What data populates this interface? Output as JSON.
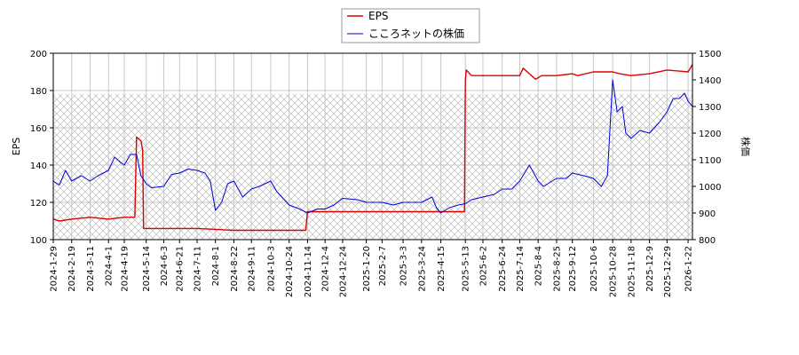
{
  "chart_data": {
    "type": "line",
    "legend": {
      "placement": "top-center",
      "entries": [
        "EPS",
        "こころネットの株価"
      ]
    },
    "grid": true,
    "shaded_band": {
      "axis": "left",
      "from": 100,
      "to": 178,
      "pattern": "crosshatch"
    },
    "x_axis": {
      "range": [
        "2024-01-29",
        "2026-01-27"
      ],
      "tick_labels": [
        "2024-1-29",
        "2024-2-19",
        "2024-3-11",
        "2024-4-1",
        "2024-4-19",
        "2024-5-14",
        "2024-6-3",
        "2024-6-21",
        "2024-7-11",
        "2024-8-1",
        "2024-8-22",
        "2024-9-11",
        "2024-10-3",
        "2024-10-24",
        "2024-11-14",
        "2024-12-4",
        "2024-12-24",
        "2025-1-20",
        "2025-2-7",
        "2025-3-3",
        "2025-3-24",
        "2025-4-15",
        "2025-5-13",
        "2025-6-2",
        "2025-6-24",
        "2025-7-14",
        "2025-8-4",
        "2025-8-25",
        "2025-9-12",
        "2025-10-6",
        "2025-10-28",
        "2025-11-18",
        "2025-12-9",
        "2025-12-29",
        "2026-1-22"
      ]
    },
    "y_left": {
      "label": "EPS",
      "range": [
        100,
        200
      ],
      "ticks": [
        100,
        120,
        140,
        160,
        180,
        200
      ]
    },
    "y_right": {
      "label": "株価",
      "range": [
        800,
        1500
      ],
      "ticks": [
        800,
        900,
        1000,
        1100,
        1200,
        1300,
        1400,
        1500
      ]
    },
    "series": [
      {
        "name": "EPS",
        "axis": "left",
        "color": "#dd0000",
        "x": [
          "2024-01-29",
          "2024-02-05",
          "2024-02-19",
          "2024-03-11",
          "2024-04-01",
          "2024-04-19",
          "2024-05-01",
          "2024-05-03",
          "2024-05-08",
          "2024-05-10",
          "2024-05-11",
          "2024-06-03",
          "2024-07-11",
          "2024-08-22",
          "2024-10-03",
          "2024-11-12",
          "2024-11-14",
          "2024-12-04",
          "2025-01-20",
          "2025-03-03",
          "2025-04-15",
          "2025-05-12",
          "2025-05-13",
          "2025-05-14",
          "2025-05-20",
          "2025-05-26",
          "2025-06-24",
          "2025-07-14",
          "2025-07-18",
          "2025-07-25",
          "2025-08-01",
          "2025-08-08",
          "2025-08-25",
          "2025-09-12",
          "2025-09-18",
          "2025-10-06",
          "2025-10-28",
          "2025-11-05",
          "2025-11-18",
          "2025-12-09",
          "2025-12-29",
          "2026-01-22",
          "2026-01-27"
        ],
        "values": [
          111,
          110,
          111,
          112,
          111,
          112,
          112,
          155,
          153,
          148,
          106,
          106,
          106,
          105,
          105,
          105,
          115,
          115,
          115,
          115,
          115,
          115,
          185,
          191,
          188,
          188,
          188,
          188,
          192,
          189,
          186,
          188,
          188,
          189,
          188,
          190,
          190,
          189,
          188,
          189,
          191,
          190,
          194
        ]
      },
      {
        "name": "こころネットの株価",
        "axis": "right",
        "color": "#0000dd",
        "x": [
          "2024-01-29",
          "2024-02-05",
          "2024-02-12",
          "2024-02-19",
          "2024-03-01",
          "2024-03-11",
          "2024-03-20",
          "2024-04-01",
          "2024-04-08",
          "2024-04-15",
          "2024-04-19",
          "2024-04-26",
          "2024-05-03",
          "2024-05-08",
          "2024-05-14",
          "2024-05-20",
          "2024-06-03",
          "2024-06-12",
          "2024-06-21",
          "2024-07-01",
          "2024-07-11",
          "2024-07-20",
          "2024-07-26",
          "2024-08-01",
          "2024-08-08",
          "2024-08-15",
          "2024-08-22",
          "2024-09-01",
          "2024-09-11",
          "2024-09-20",
          "2024-10-03",
          "2024-10-10",
          "2024-10-24",
          "2024-11-05",
          "2024-11-14",
          "2024-11-25",
          "2024-12-04",
          "2024-12-14",
          "2024-12-24",
          "2025-01-10",
          "2025-01-20",
          "2025-02-07",
          "2025-02-20",
          "2025-03-03",
          "2025-03-24",
          "2025-04-05",
          "2025-04-10",
          "2025-04-15",
          "2025-04-25",
          "2025-05-05",
          "2025-05-13",
          "2025-05-20",
          "2025-06-02",
          "2025-06-15",
          "2025-06-24",
          "2025-07-05",
          "2025-07-14",
          "2025-07-25",
          "2025-08-04",
          "2025-08-10",
          "2025-08-25",
          "2025-09-05",
          "2025-09-12",
          "2025-09-25",
          "2025-10-06",
          "2025-10-15",
          "2025-10-22",
          "2025-10-28",
          "2025-11-02",
          "2025-11-08",
          "2025-11-12",
          "2025-11-18",
          "2025-11-28",
          "2025-12-09",
          "2025-12-20",
          "2025-12-29",
          "2026-01-05",
          "2026-01-12",
          "2026-01-18",
          "2026-01-22",
          "2026-01-27"
        ],
        "values": [
          1020,
          1005,
          1060,
          1020,
          1040,
          1020,
          1040,
          1060,
          1110,
          1090,
          1080,
          1120,
          1120,
          1040,
          1010,
          995,
          1000,
          1045,
          1050,
          1065,
          1060,
          1050,
          1020,
          910,
          940,
          1010,
          1020,
          960,
          990,
          1000,
          1020,
          980,
          930,
          915,
          900,
          915,
          915,
          930,
          955,
          950,
          940,
          940,
          930,
          940,
          940,
          960,
          920,
          900,
          920,
          930,
          935,
          950,
          960,
          970,
          990,
          990,
          1020,
          1080,
          1020,
          1000,
          1030,
          1030,
          1050,
          1040,
          1030,
          1000,
          1040,
          1400,
          1280,
          1300,
          1200,
          1180,
          1210,
          1200,
          1240,
          1280,
          1330,
          1330,
          1350,
          1320,
          1300
        ]
      }
    ]
  }
}
